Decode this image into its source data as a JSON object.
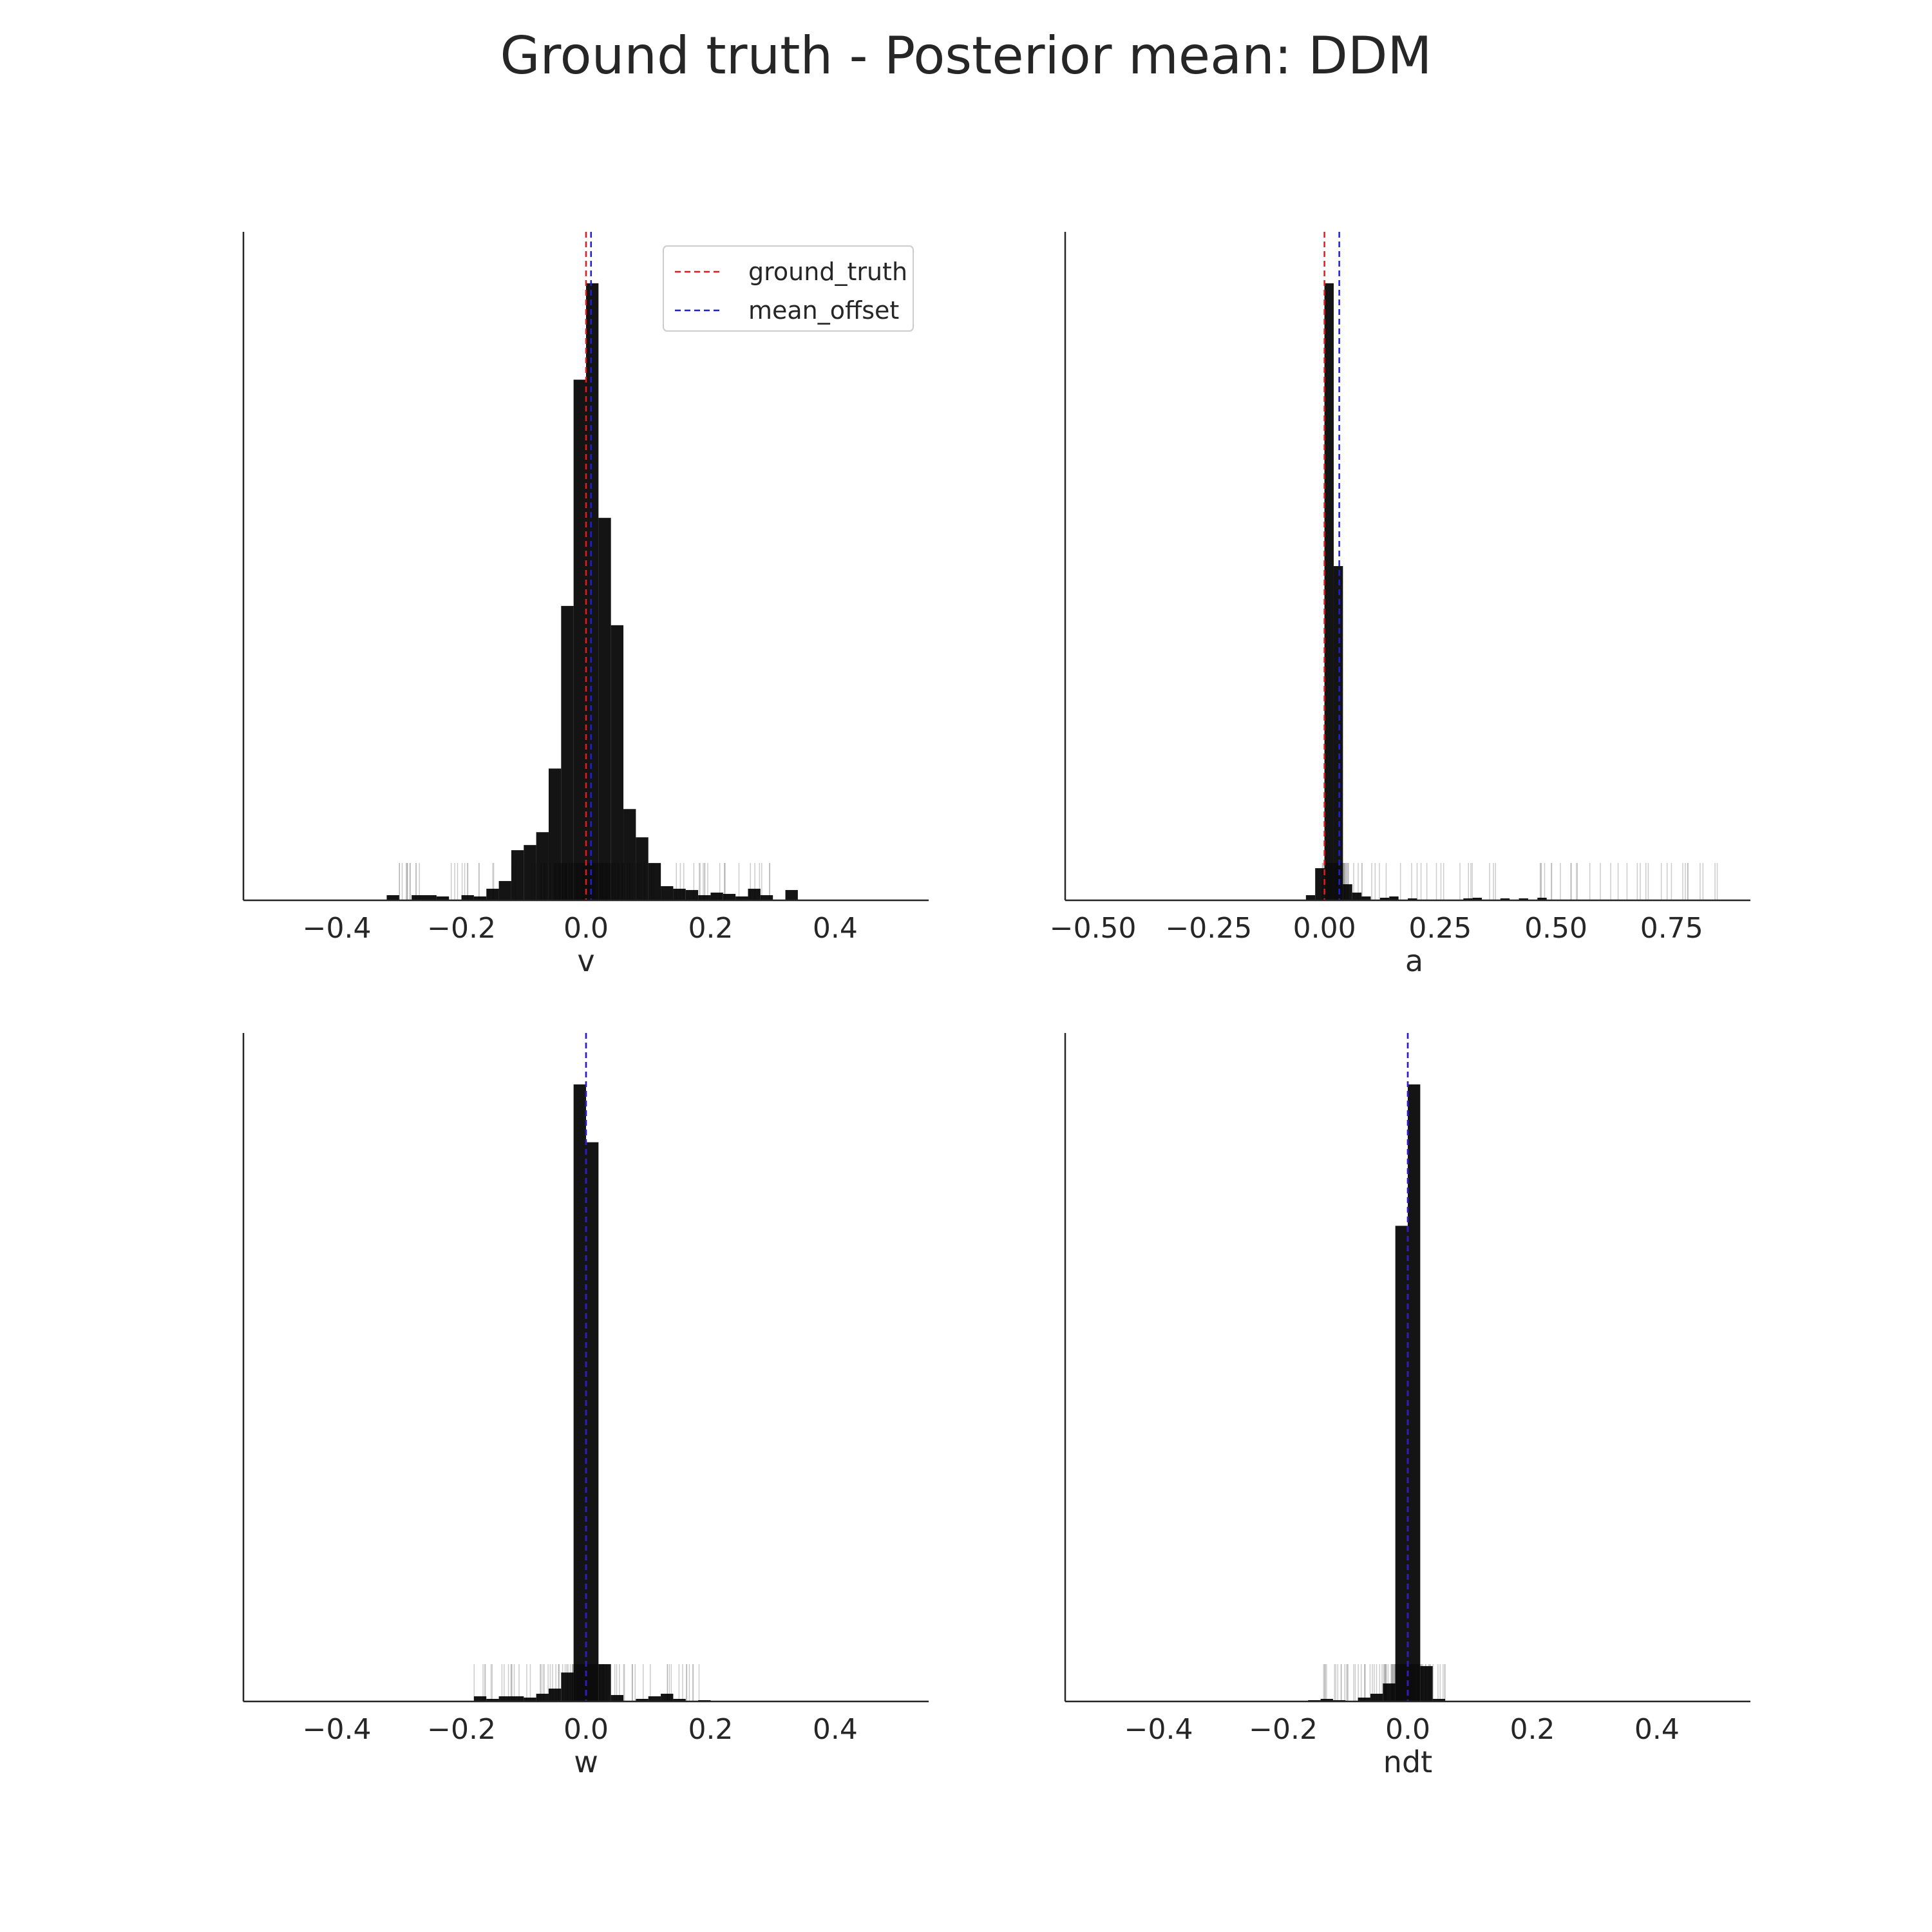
{
  "figure": {
    "title": "Ground truth - Posterior mean: DDM"
  },
  "legend": {
    "placement": "top-right of first panel",
    "items": [
      {
        "label": "ground_truth",
        "color": "#e41a1c",
        "style": "dashed"
      },
      {
        "label": "mean_offset",
        "color": "#1f1fd6",
        "style": "dashed"
      }
    ]
  },
  "colors": {
    "bar": "#000000",
    "rug": "#9a9a9a",
    "axis": "#262626",
    "ground_truth": "#e41a1c",
    "mean_offset": "#1f1fd6"
  },
  "chart_data": [
    {
      "type": "bar",
      "panel": "top-left",
      "xlabel": "v",
      "xlim": [
        -0.55,
        0.55
      ],
      "xticks": [
        -0.4,
        -0.2,
        0.0,
        0.2,
        0.4
      ],
      "xtick_labels": [
        "−0.4",
        "−0.2",
        "0.0",
        "0.2",
        "0.4"
      ],
      "ylim": [
        0,
        1.04
      ],
      "grid": false,
      "legend": true,
      "ground_truth": 0.0,
      "mean_offset": 0.008,
      "bins": [
        {
          "x0": -0.32,
          "x1": -0.3,
          "h": 0.008
        },
        {
          "x0": -0.28,
          "x1": -0.24,
          "h": 0.008
        },
        {
          "x0": -0.24,
          "x1": -0.22,
          "h": 0.006
        },
        {
          "x0": -0.2,
          "x1": -0.18,
          "h": 0.008
        },
        {
          "x0": -0.18,
          "x1": -0.16,
          "h": 0.006
        },
        {
          "x0": -0.16,
          "x1": -0.14,
          "h": 0.018
        },
        {
          "x0": -0.14,
          "x1": -0.12,
          "h": 0.03
        },
        {
          "x0": -0.12,
          "x1": -0.1,
          "h": 0.078
        },
        {
          "x0": -0.1,
          "x1": -0.08,
          "h": 0.086
        },
        {
          "x0": -0.08,
          "x1": -0.06,
          "h": 0.106
        },
        {
          "x0": -0.06,
          "x1": -0.04,
          "h": 0.205
        },
        {
          "x0": -0.04,
          "x1": -0.02,
          "h": 0.458
        },
        {
          "x0": -0.02,
          "x1": 0.0,
          "h": 0.81
        },
        {
          "x0": 0.0,
          "x1": 0.02,
          "h": 0.96
        },
        {
          "x0": 0.02,
          "x1": 0.04,
          "h": 0.595
        },
        {
          "x0": 0.04,
          "x1": 0.06,
          "h": 0.428
        },
        {
          "x0": 0.06,
          "x1": 0.08,
          "h": 0.142
        },
        {
          "x0": 0.08,
          "x1": 0.1,
          "h": 0.098
        },
        {
          "x0": 0.1,
          "x1": 0.12,
          "h": 0.058
        },
        {
          "x0": 0.12,
          "x1": 0.14,
          "h": 0.022
        },
        {
          "x0": 0.14,
          "x1": 0.16,
          "h": 0.018
        },
        {
          "x0": 0.16,
          "x1": 0.18,
          "h": 0.016
        },
        {
          "x0": 0.18,
          "x1": 0.2,
          "h": 0.008
        },
        {
          "x0": 0.2,
          "x1": 0.22,
          "h": 0.012
        },
        {
          "x0": 0.22,
          "x1": 0.24,
          "h": 0.01
        },
        {
          "x0": 0.24,
          "x1": 0.26,
          "h": 0.006
        },
        {
          "x0": 0.26,
          "x1": 0.28,
          "h": 0.018
        },
        {
          "x0": 0.28,
          "x1": 0.3,
          "h": 0.008
        },
        {
          "x0": 0.32,
          "x1": 0.34,
          "h": 0.016
        }
      ],
      "rug_range": [
        -0.31,
        0.33
      ],
      "rug_core": [
        -0.12,
        0.12
      ]
    },
    {
      "type": "bar",
      "panel": "top-right",
      "xlabel": "a",
      "xlim": [
        -0.56,
        0.92
      ],
      "xticks": [
        -0.5,
        -0.25,
        0.0,
        0.25,
        0.5,
        0.75
      ],
      "xtick_labels": [
        "−0.50",
        "−0.25",
        "0.00",
        "0.25",
        "0.50",
        "0.75"
      ],
      "ylim": [
        0,
        1.04
      ],
      "grid": false,
      "legend": false,
      "ground_truth": 0.0,
      "mean_offset": 0.032,
      "bins": [
        {
          "x0": -0.04,
          "x1": -0.02,
          "h": 0.008
        },
        {
          "x0": -0.02,
          "x1": 0.0,
          "h": 0.05
        },
        {
          "x0": 0.0,
          "x1": 0.02,
          "h": 0.96
        },
        {
          "x0": 0.02,
          "x1": 0.04,
          "h": 0.52
        },
        {
          "x0": 0.04,
          "x1": 0.06,
          "h": 0.025
        },
        {
          "x0": 0.06,
          "x1": 0.08,
          "h": 0.012
        },
        {
          "x0": 0.08,
          "x1": 0.1,
          "h": 0.006
        },
        {
          "x0": 0.12,
          "x1": 0.14,
          "h": 0.004
        },
        {
          "x0": 0.14,
          "x1": 0.16,
          "h": 0.006
        },
        {
          "x0": 0.18,
          "x1": 0.2,
          "h": 0.003
        },
        {
          "x0": 0.3,
          "x1": 0.32,
          "h": 0.003
        },
        {
          "x0": 0.32,
          "x1": 0.34,
          "h": 0.004
        },
        {
          "x0": 0.38,
          "x1": 0.4,
          "h": 0.003
        },
        {
          "x0": 0.42,
          "x1": 0.44,
          "h": 0.003
        },
        {
          "x0": 0.46,
          "x1": 0.48,
          "h": 0.004
        }
      ],
      "rug_range": [
        -0.04,
        0.87
      ],
      "rug_core": [
        -0.02,
        0.06
      ]
    },
    {
      "type": "bar",
      "panel": "bottom-left",
      "xlabel": "w",
      "xlim": [
        -0.55,
        0.55
      ],
      "xticks": [
        -0.4,
        -0.2,
        0.0,
        0.2,
        0.4
      ],
      "xtick_labels": [
        "−0.4",
        "−0.2",
        "0.0",
        "0.2",
        "0.4"
      ],
      "ylim": [
        0,
        1.04
      ],
      "grid": false,
      "legend": false,
      "ground_truth": 0.0,
      "mean_offset": 0.0,
      "bins": [
        {
          "x0": -0.18,
          "x1": -0.16,
          "h": 0.008
        },
        {
          "x0": -0.16,
          "x1": -0.14,
          "h": 0.004
        },
        {
          "x0": -0.14,
          "x1": -0.12,
          "h": 0.008
        },
        {
          "x0": -0.12,
          "x1": -0.1,
          "h": 0.008
        },
        {
          "x0": -0.1,
          "x1": -0.08,
          "h": 0.006
        },
        {
          "x0": -0.08,
          "x1": -0.06,
          "h": 0.012
        },
        {
          "x0": -0.06,
          "x1": -0.04,
          "h": 0.02
        },
        {
          "x0": -0.04,
          "x1": -0.02,
          "h": 0.045
        },
        {
          "x0": -0.02,
          "x1": 0.0,
          "h": 0.96
        },
        {
          "x0": 0.0,
          "x1": 0.02,
          "h": 0.87
        },
        {
          "x0": 0.02,
          "x1": 0.04,
          "h": 0.058
        },
        {
          "x0": 0.04,
          "x1": 0.06,
          "h": 0.01
        },
        {
          "x0": 0.08,
          "x1": 0.1,
          "h": 0.004
        },
        {
          "x0": 0.1,
          "x1": 0.12,
          "h": 0.008
        },
        {
          "x0": 0.12,
          "x1": 0.14,
          "h": 0.012
        },
        {
          "x0": 0.14,
          "x1": 0.16,
          "h": 0.004
        },
        {
          "x0": 0.18,
          "x1": 0.2,
          "h": 0.002
        }
      ],
      "rug_range": [
        -0.18,
        0.19
      ],
      "rug_core": [
        -0.04,
        0.04
      ]
    },
    {
      "type": "bar",
      "panel": "bottom-right",
      "xlabel": "ndt",
      "xlim": [
        -0.55,
        0.55
      ],
      "xticks": [
        -0.4,
        -0.2,
        0.0,
        0.2,
        0.4
      ],
      "xtick_labels": [
        "−0.4",
        "−0.2",
        "0.0",
        "0.2",
        "0.4"
      ],
      "ylim": [
        0,
        1.04
      ],
      "grid": false,
      "legend": false,
      "ground_truth": 0.0,
      "mean_offset": 0.0,
      "bins": [
        {
          "x0": -0.16,
          "x1": -0.14,
          "h": 0.002
        },
        {
          "x0": -0.14,
          "x1": -0.12,
          "h": 0.004
        },
        {
          "x0": -0.12,
          "x1": -0.1,
          "h": 0.002
        },
        {
          "x0": -0.08,
          "x1": -0.06,
          "h": 0.006
        },
        {
          "x0": -0.06,
          "x1": -0.04,
          "h": 0.012
        },
        {
          "x0": -0.04,
          "x1": -0.02,
          "h": 0.028
        },
        {
          "x0": -0.02,
          "x1": 0.0,
          "h": 0.74
        },
        {
          "x0": 0.0,
          "x1": 0.02,
          "h": 0.96
        },
        {
          "x0": 0.02,
          "x1": 0.04,
          "h": 0.055
        },
        {
          "x0": 0.04,
          "x1": 0.06,
          "h": 0.004
        }
      ],
      "rug_range": [
        -0.14,
        0.06
      ],
      "rug_core": [
        -0.04,
        0.04
      ]
    }
  ]
}
